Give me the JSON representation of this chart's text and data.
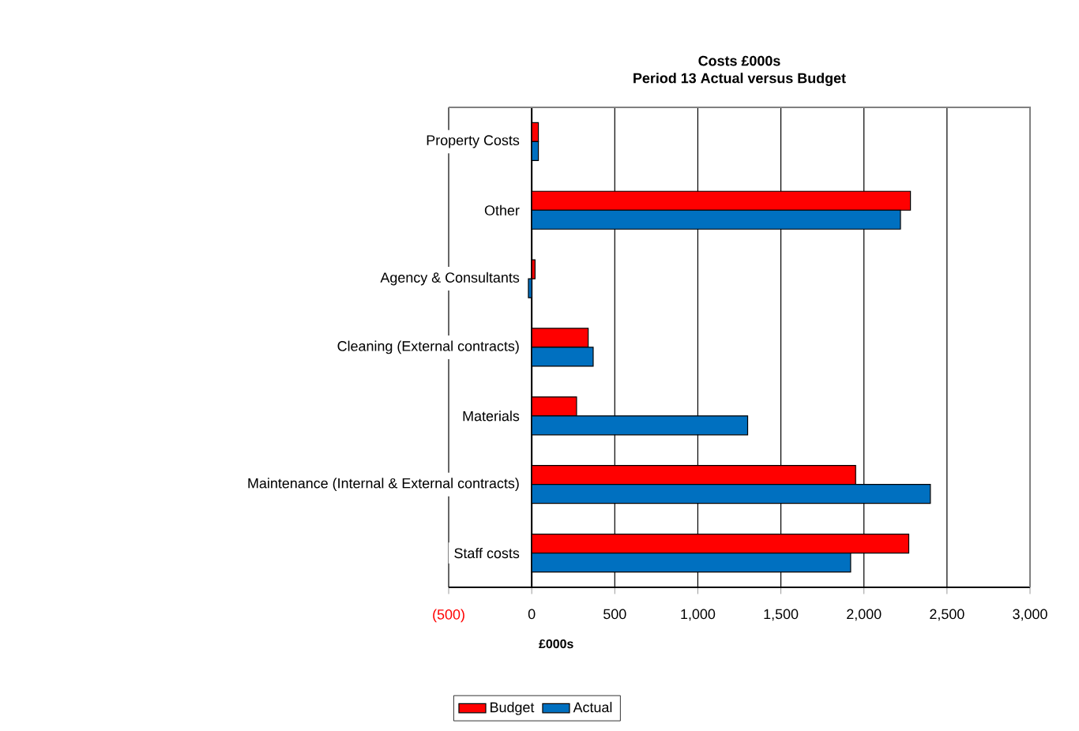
{
  "chart_data": {
    "type": "bar",
    "orientation": "horizontal",
    "title": "Costs  £000s",
    "subtitle": "Period 13 Actual  versus  Budget",
    "xlabel": "£000s",
    "categories": [
      "Property Costs",
      "Other",
      "Agency & Consultants",
      "Cleaning (External contracts)",
      "Materials",
      "Maintenance (Internal & External contracts)",
      "Staff costs"
    ],
    "series": [
      {
        "name": "Budget",
        "color": "#ff0000",
        "values": [
          40,
          2280,
          20,
          340,
          270,
          1950,
          2270
        ]
      },
      {
        "name": "Actual",
        "color": "#0070c0",
        "values": [
          40,
          2220,
          -20,
          370,
          1300,
          2400,
          1920
        ]
      }
    ],
    "xlim": [
      -500,
      3000
    ],
    "xticks": [
      {
        "value": -500,
        "label": "(500)"
      },
      0,
      {
        "value": 500,
        "label": "500"
      },
      {
        "value": 1000,
        "label": "1,000"
      },
      {
        "value": 1500,
        "label": "1,500"
      },
      {
        "value": 2000,
        "label": "2,000"
      },
      {
        "value": 2500,
        "label": "2,500"
      },
      {
        "value": 3000,
        "label": "3,000"
      }
    ],
    "grid": "x",
    "legend": "bottom"
  }
}
